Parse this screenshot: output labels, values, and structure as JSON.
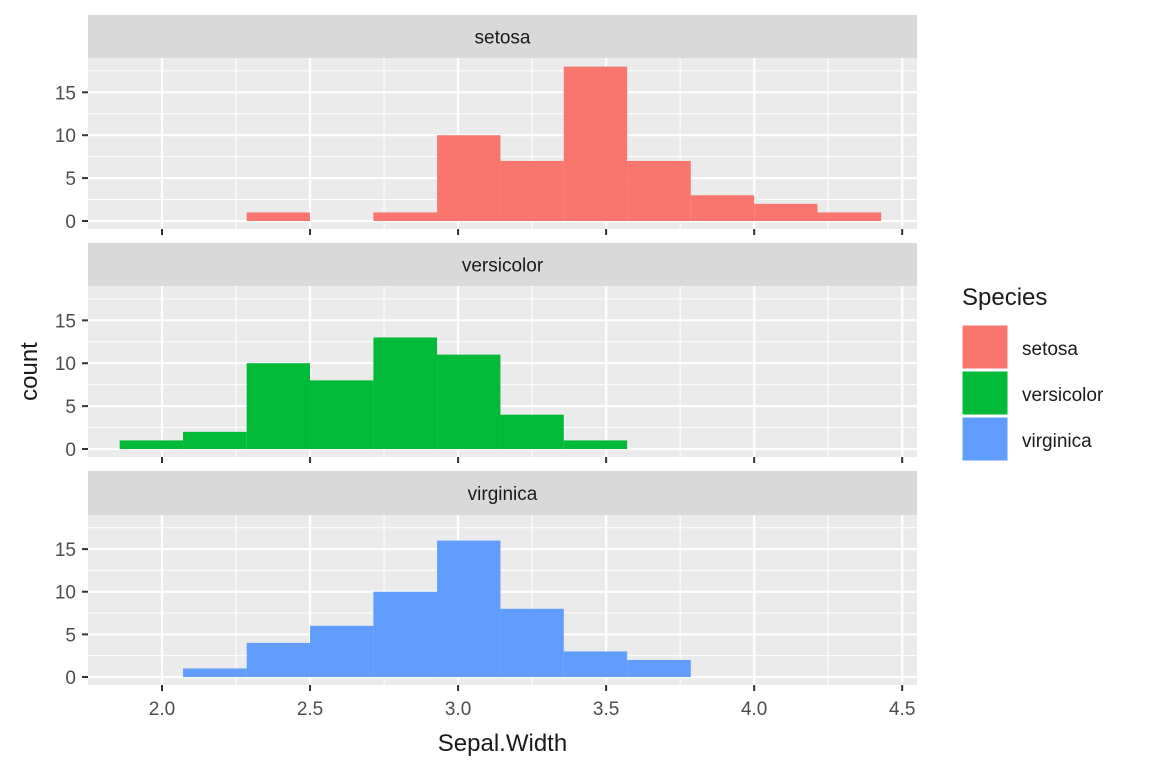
{
  "chart_data": {
    "type": "bar",
    "subtype": "faceted-histogram",
    "xlabel": "Sepal.Width",
    "ylabel": "count",
    "xlim": [
      1.75,
      4.55
    ],
    "ylim": [
      0,
      19
    ],
    "x_ticks": [
      2.0,
      2.5,
      3.0,
      3.5,
      4.0,
      4.5
    ],
    "x_tick_labels": [
      "2.0",
      "2.5",
      "3.0",
      "3.5",
      "4.0",
      "4.5"
    ],
    "y_ticks": [
      0,
      5,
      10,
      15
    ],
    "y_tick_labels": [
      "0",
      "5",
      "10",
      "15"
    ],
    "bin_edges": [
      1.857,
      2.071,
      2.286,
      2.5,
      2.714,
      2.929,
      3.143,
      3.357,
      3.571,
      3.786,
      4.0,
      4.214,
      4.429
    ],
    "grid": true,
    "legend": {
      "title": "Species",
      "placement": "right",
      "entries": [
        {
          "label": "setosa",
          "color": "#F8766D"
        },
        {
          "label": "versicolor",
          "color": "#00BA38"
        },
        {
          "label": "virginica",
          "color": "#619CFF"
        }
      ]
    },
    "series": [
      {
        "name": "setosa",
        "color": "#F8766D",
        "values": [
          0,
          0,
          1,
          0,
          1,
          10,
          7,
          18,
          7,
          3,
          2,
          1
        ]
      },
      {
        "name": "versicolor",
        "color": "#00BA38",
        "values": [
          1,
          2,
          10,
          8,
          13,
          11,
          4,
          1,
          0,
          0,
          0,
          0
        ]
      },
      {
        "name": "virginica",
        "color": "#619CFF",
        "values": [
          0,
          1,
          4,
          6,
          10,
          16,
          8,
          3,
          2,
          0,
          0,
          0
        ]
      }
    ],
    "colors": {
      "panel_background": "#EBEBEB",
      "strip_background": "#D9D9D9",
      "grid": "#FFFFFF",
      "text": "#1A1A1A",
      "tick_text": "#4D4D4D"
    }
  }
}
